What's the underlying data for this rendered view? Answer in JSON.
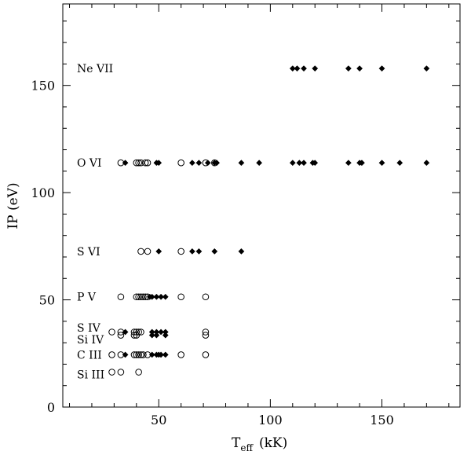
{
  "chart_data": {
    "type": "scatter",
    "title": "",
    "xlabel": "T",
    "xlabel_sub": "eff",
    "xlabel_unit": "(kK)",
    "ylabel": "IP (eV)",
    "xlim": [
      7,
      185
    ],
    "ylim": [
      0,
      188
    ],
    "xticks": [
      50,
      100,
      150
    ],
    "yticks": [
      0,
      50,
      100,
      150
    ],
    "grid": false,
    "ion_labels": [
      {
        "text": "Ne VII",
        "y": 157.9
      },
      {
        "text": "O VI",
        "y": 113.9
      },
      {
        "text": "S VI",
        "y": 72.6
      },
      {
        "text": "P V",
        "y": 51.4
      },
      {
        "text": "S IV",
        "y": 37.0
      },
      {
        "text": "Si IV",
        "y": 31.5
      },
      {
        "text": "C III",
        "y": 24.4
      },
      {
        "text": "Si III",
        "y": 15.3
      }
    ],
    "series": [
      {
        "marker": "open-circle",
        "points": [
          [
            33,
            113.9
          ],
          [
            40,
            113.9
          ],
          [
            41,
            113.9
          ],
          [
            42,
            113.9
          ],
          [
            44,
            113.9
          ],
          [
            45,
            113.9
          ],
          [
            60,
            113.9
          ],
          [
            71,
            113.9
          ],
          [
            75,
            113.9
          ],
          [
            42,
            72.6
          ],
          [
            45,
            72.6
          ],
          [
            60,
            72.6
          ],
          [
            33,
            51.4
          ],
          [
            40,
            51.4
          ],
          [
            41,
            51.4
          ],
          [
            42,
            51.4
          ],
          [
            43,
            51.4
          ],
          [
            44,
            51.4
          ],
          [
            45,
            51.4
          ],
          [
            60,
            51.4
          ],
          [
            71,
            51.4
          ],
          [
            29,
            35
          ],
          [
            33,
            35
          ],
          [
            39,
            35
          ],
          [
            40,
            35
          ],
          [
            41,
            35
          ],
          [
            42,
            35
          ],
          [
            71,
            35
          ],
          [
            33,
            33.5
          ],
          [
            39,
            33.5
          ],
          [
            40,
            33.5
          ],
          [
            71,
            33.5
          ],
          [
            29,
            24.4
          ],
          [
            33,
            24.4
          ],
          [
            39,
            24.4
          ],
          [
            40,
            24.4
          ],
          [
            41,
            24.4
          ],
          [
            42,
            24.4
          ],
          [
            43,
            24.4
          ],
          [
            45,
            24.4
          ],
          [
            60,
            24.4
          ],
          [
            71,
            24.4
          ],
          [
            29,
            16.3
          ],
          [
            33,
            16.3
          ],
          [
            41,
            16.3
          ]
        ]
      },
      {
        "marker": "filled-diamond",
        "points": [
          [
            110,
            157.9
          ],
          [
            112,
            157.9
          ],
          [
            115,
            157.9
          ],
          [
            120,
            157.9
          ],
          [
            135,
            157.9
          ],
          [
            140,
            157.9
          ],
          [
            150,
            157.9
          ],
          [
            170,
            157.9
          ],
          [
            35,
            113.9
          ],
          [
            49,
            113.9
          ],
          [
            50,
            113.9
          ],
          [
            65,
            113.9
          ],
          [
            68,
            113.9
          ],
          [
            72,
            113.9
          ],
          [
            75,
            113.9
          ],
          [
            76,
            113.9
          ],
          [
            87,
            113.9
          ],
          [
            95,
            113.9
          ],
          [
            110,
            113.9
          ],
          [
            113,
            113.9
          ],
          [
            115,
            113.9
          ],
          [
            119,
            113.9
          ],
          [
            120,
            113.9
          ],
          [
            135,
            113.9
          ],
          [
            140,
            113.9
          ],
          [
            141,
            113.9
          ],
          [
            150,
            113.9
          ],
          [
            158,
            113.9
          ],
          [
            170,
            113.9
          ],
          [
            50,
            72.6
          ],
          [
            65,
            72.6
          ],
          [
            68,
            72.6
          ],
          [
            75,
            72.6
          ],
          [
            87,
            72.6
          ],
          [
            46,
            51.4
          ],
          [
            47,
            51.4
          ],
          [
            49,
            51.4
          ],
          [
            51,
            51.4
          ],
          [
            53,
            51.4
          ],
          [
            35,
            35
          ],
          [
            47,
            35
          ],
          [
            49,
            35
          ],
          [
            51,
            35
          ],
          [
            53,
            35
          ],
          [
            47,
            33.5
          ],
          [
            49,
            33.5
          ],
          [
            53,
            33.5
          ],
          [
            35,
            24.4
          ],
          [
            47,
            24.4
          ],
          [
            49,
            24.4
          ],
          [
            51,
            24.4
          ],
          [
            53,
            24.4
          ],
          [
            50,
            24.4
          ]
        ]
      }
    ]
  }
}
